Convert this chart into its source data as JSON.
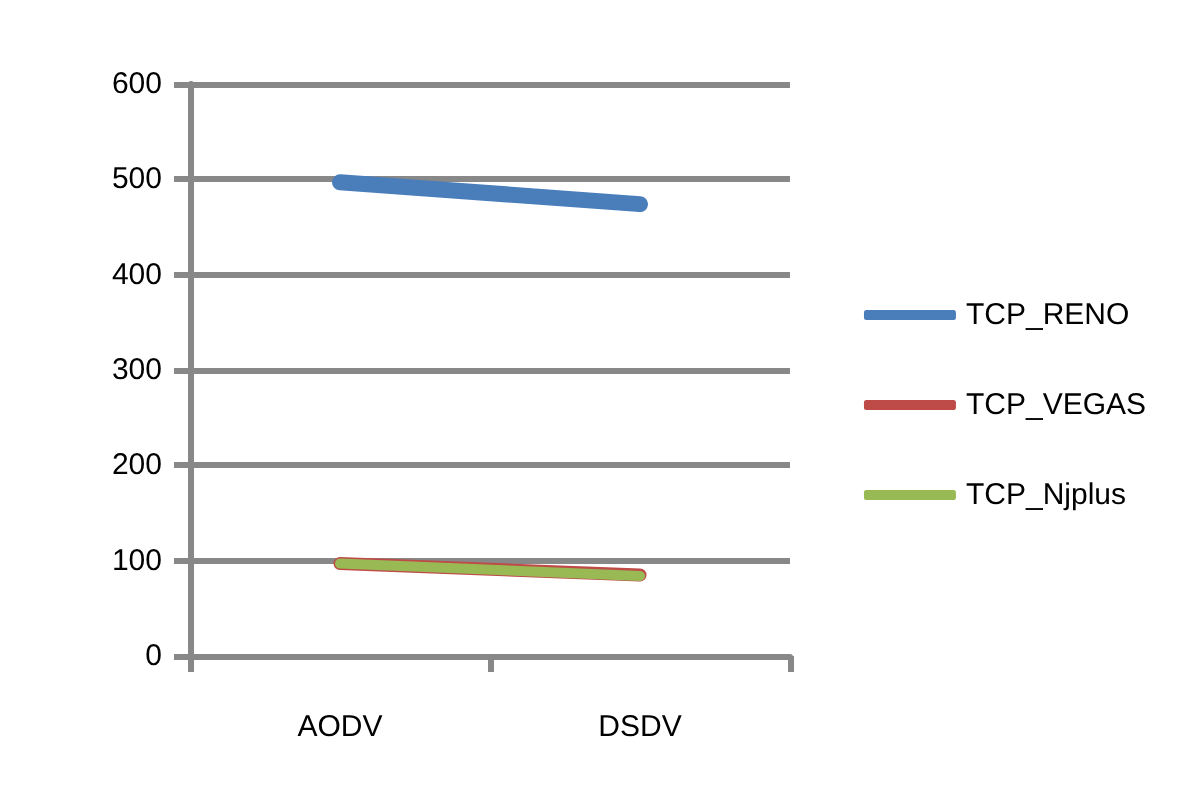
{
  "chart_data": {
    "type": "line",
    "categories": [
      "AODV",
      "DSDV"
    ],
    "series": [
      {
        "name": "TCP_RENO",
        "color": "#4a7ebb",
        "values": [
          497,
          474
        ]
      },
      {
        "name": "TCP_VEGAS",
        "color": "#be4b48",
        "values": [
          97,
          85
        ]
      },
      {
        "name": "TCP_Njplus",
        "color": "#98b954",
        "values": [
          97,
          84
        ]
      }
    ],
    "ylim": [
      0,
      600
    ],
    "yticks": [
      0,
      100,
      200,
      300,
      400,
      500,
      600
    ],
    "grid": "y",
    "legend": "right",
    "marker": "none"
  }
}
